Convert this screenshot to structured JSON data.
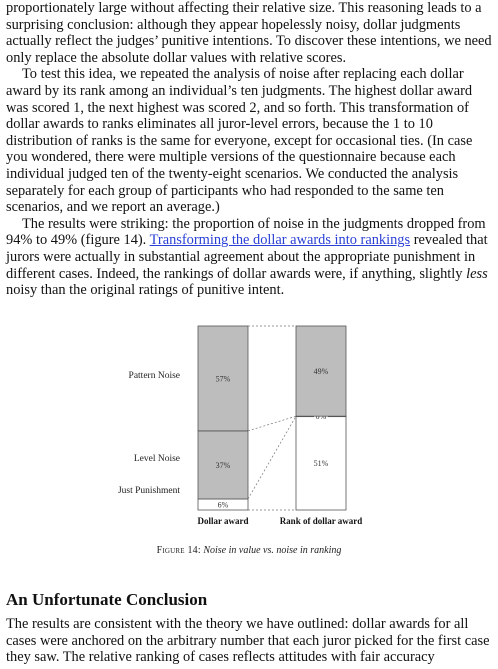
{
  "paragraphs": {
    "p1": "proportionately large without affecting their relative size. This reasoning leads to a surprising conclusion: although they appear hopelessly noisy, dollar judgments actually reflect the judges’ punitive intentions. To discover these intentions, we need only replace the absolute dollar values with relative scores.",
    "p2": "To test this idea, we repeated the analysis of noise after replacing each dollar award by its rank among an individual’s ten judgments. The highest dollar award was scored 1, the next highest was scored 2, and so forth. This transformation of dollar awards to ranks eliminates all juror-level errors, because the 1 to 10 distribution of ranks is the same for everyone, except for occasional ties. (In case you wondered, there were multiple versions of the questionnaire because each individual judged ten of the twenty-eight scenarios. We conducted the analysis separately for each group of participants who had responded to the same ten scenarios, and we report an average.)",
    "p3_before": "The results were striking: the proportion of noise in the judgments dropped from 94% to 49% (figure 14). ",
    "p3_link": "Transforming the dollar awards into rankings",
    "p3_after_a": " revealed that jurors were actually in substantial agreement about the appropriate punishment in different cases. Indeed, the rankings of dollar awards were, if anything, slightly ",
    "p3_em": "less",
    "p3_after_b": " noisy than the original ratings of punitive intent."
  },
  "figure": {
    "labels": {
      "pattern": "Pattern Noise",
      "level": "Level Noise",
      "just": "Just Punishment"
    },
    "caption_prefix": "Figure 14:",
    "caption_text": "Noise in value vs. noise in ranking"
  },
  "chart_data": {
    "type": "bar",
    "stacked": true,
    "categories": [
      "Dollar award",
      "Rank of dollar award"
    ],
    "series": [
      {
        "name": "Just Punishment",
        "values": [
          6,
          51
        ],
        "labels": [
          "6%",
          "51%"
        ],
        "color": "#ffffff"
      },
      {
        "name": "Level Noise",
        "values": [
          37,
          0
        ],
        "labels": [
          "37%",
          "0%"
        ],
        "color": "#bdbdbd"
      },
      {
        "name": "Pattern Noise",
        "values": [
          57,
          49
        ],
        "labels": [
          "57%",
          "49%"
        ],
        "color": "#bdbdbd"
      }
    ],
    "ylim": [
      0,
      100
    ]
  },
  "section": {
    "heading": "An Unfortunate Conclusion",
    "text": "The results are consistent with the theory we have outlined: dollar awards for all cases were anchored on the arbitrary number that each juror picked for the first case they saw. The relative ranking of cases reflects attitudes with fair accuracy"
  }
}
